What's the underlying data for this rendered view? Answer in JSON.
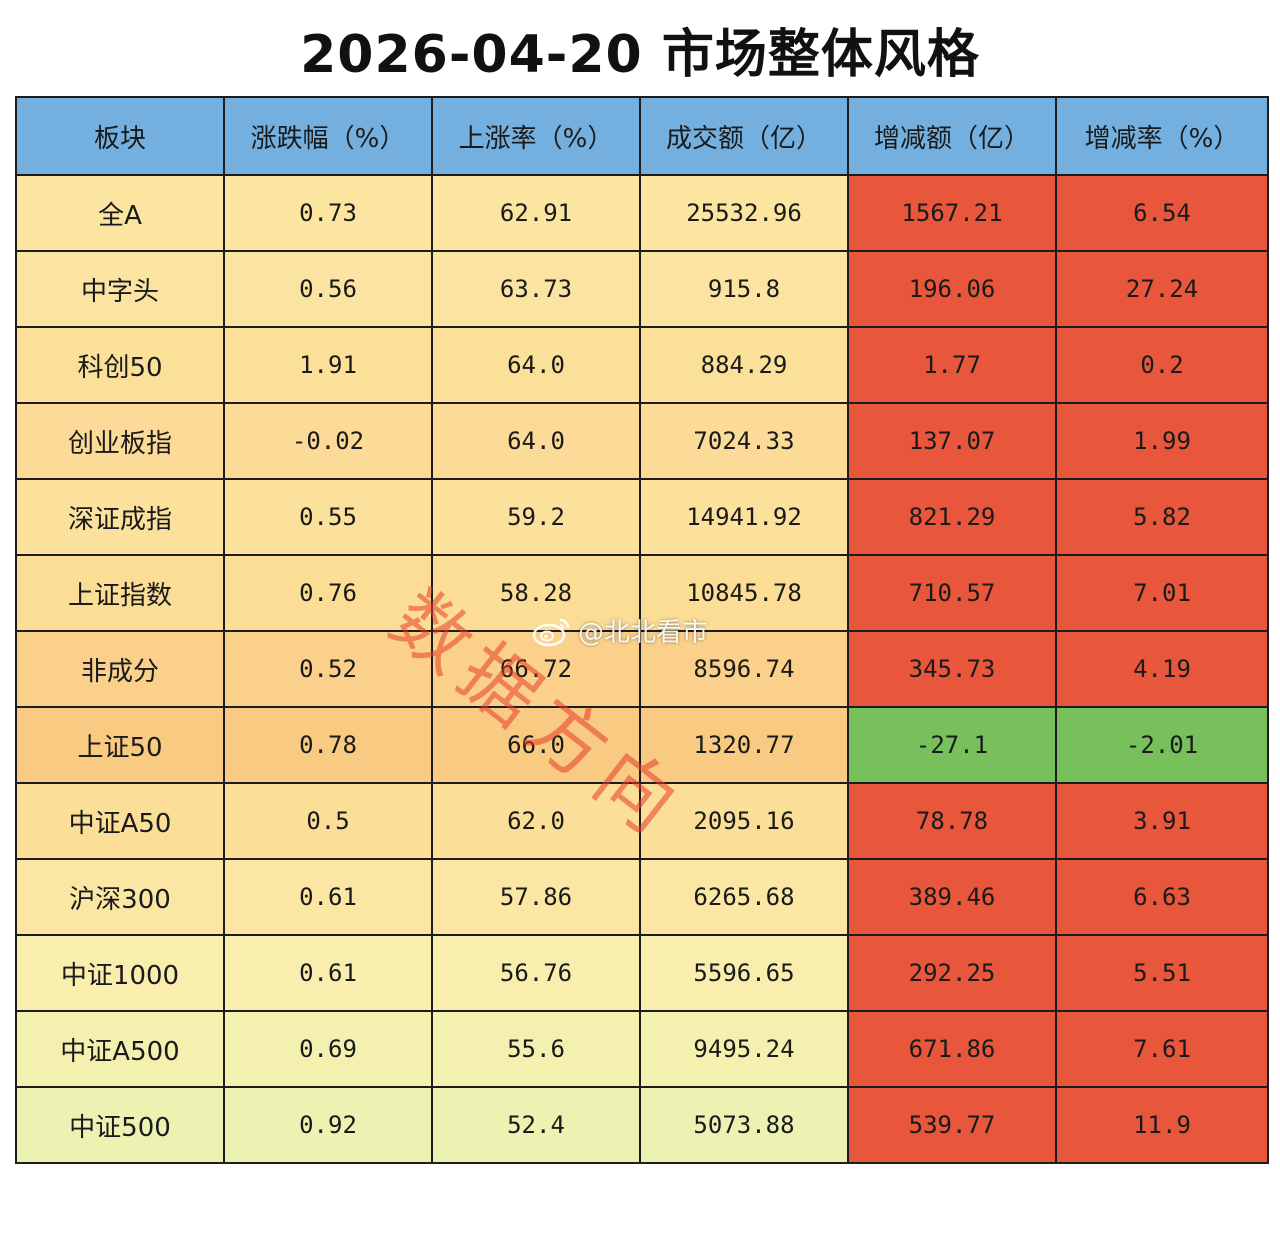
{
  "title": "2026-04-20 市场整体风格",
  "chart_data": {
    "type": "table",
    "title": "2026-04-20 市场整体风格",
    "columns": [
      "板块",
      "涨跌幅（%）",
      "上涨率（%）",
      "成交额（亿）",
      "增减额（亿）",
      "增减率（%）"
    ],
    "rows": [
      [
        "全A",
        "0.73",
        "62.91",
        "25532.96",
        "1567.21",
        "6.54"
      ],
      [
        "中字头",
        "0.56",
        "63.73",
        "915.8",
        "196.06",
        "27.24"
      ],
      [
        "科创50",
        "1.91",
        "64.0",
        "884.29",
        "1.77",
        "0.2"
      ],
      [
        "创业板指",
        "-0.02",
        "64.0",
        "7024.33",
        "137.07",
        "1.99"
      ],
      [
        "深证成指",
        "0.55",
        "59.2",
        "14941.92",
        "821.29",
        "5.82"
      ],
      [
        "上证指数",
        "0.76",
        "58.28",
        "10845.78",
        "710.57",
        "7.01"
      ],
      [
        "非成分",
        "0.52",
        "66.72",
        "8596.74",
        "345.73",
        "4.19"
      ],
      [
        "上证50",
        "0.78",
        "66.0",
        "1320.77",
        "-27.1",
        "-2.01"
      ],
      [
        "中证A50",
        "0.5",
        "62.0",
        "2095.16",
        "78.78",
        "3.91"
      ],
      [
        "沪深300",
        "0.61",
        "57.86",
        "6265.68",
        "389.46",
        "6.63"
      ],
      [
        "中证1000",
        "0.61",
        "56.76",
        "5596.65",
        "292.25",
        "5.51"
      ],
      [
        "中证A500",
        "0.69",
        "55.6",
        "9495.24",
        "671.86",
        "7.61"
      ],
      [
        "中证500",
        "0.92",
        "52.4",
        "5073.88",
        "539.77",
        "11.9"
      ]
    ],
    "row_colors": [
      "#fbe5a0",
      "#fbe3a1",
      "#fbe09a",
      "#fbdb97",
      "#fbe19c",
      "#fbdd96",
      "#fad08a",
      "#f9cb82",
      "#fbde98",
      "#fbe6a3",
      "#f9eeae",
      "#f4f0b0",
      "#ecf3b2"
    ],
    "positive_change_color": "#e8573b",
    "negative_change_color": "#78c05b",
    "header_color": "#74b0df"
  },
  "watermark": {
    "text": "数据方向",
    "color": "#e63c28"
  },
  "weibo_tag": {
    "icon": "weibo-icon",
    "text": "@北北看市"
  }
}
